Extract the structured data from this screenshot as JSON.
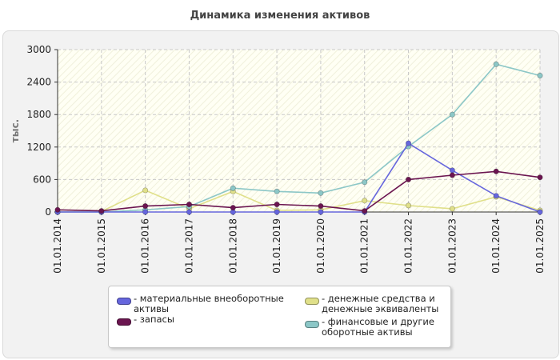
{
  "chart_data": {
    "type": "line",
    "title": "Динамика изменения активов",
    "ylabel": "тыс.",
    "xlabel": "",
    "ylim": [
      0,
      3000
    ],
    "yticks": [
      0,
      600,
      1200,
      1800,
      2400,
      3000
    ],
    "categories": [
      "01.01.2014",
      "01.01.2015",
      "01.01.2016",
      "01.01.2017",
      "01.01.2018",
      "01.01.2019",
      "01.01.2020",
      "01.01.2021",
      "01.01.2022",
      "01.01.2023",
      "01.01.2024",
      "01.01.2025"
    ],
    "series": [
      {
        "name": "материальные внеоборотные активы",
        "legend": "- материальные внеоборотные активы",
        "color": "#6666dd",
        "values": [
          0,
          0,
          0,
          0,
          0,
          0,
          0,
          0,
          1270,
          770,
          300,
          0
        ]
      },
      {
        "name": "запасы",
        "legend": "- запасы",
        "color": "#6b1550",
        "values": [
          40,
          20,
          110,
          140,
          80,
          140,
          110,
          20,
          600,
          680,
          750,
          640
        ]
      },
      {
        "name": "денежные средства и денежные эквиваленты",
        "legend": "- денежные средства и денежные эквиваленты",
        "color": "#e0e08a",
        "values": [
          0,
          10,
          400,
          60,
          380,
          30,
          40,
          210,
          120,
          60,
          280,
          30
        ]
      },
      {
        "name": "финансовые и другие оборотные активы",
        "legend": "- финансовые и другие оборотные активы",
        "color": "#8cc7c7",
        "values": [
          0,
          0,
          40,
          100,
          440,
          380,
          350,
          550,
          1210,
          1800,
          2730,
          2520
        ]
      }
    ],
    "grid": true,
    "legend_position": "bottom"
  }
}
